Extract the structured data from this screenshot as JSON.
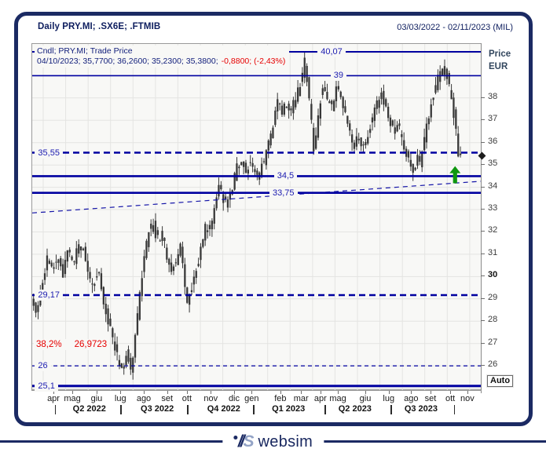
{
  "window": {
    "title": "Daily PRY.MI; .SX6E; .FTMIB",
    "date_range": "03/03/2022 - 02/11/2023 (MIL)"
  },
  "legend": {
    "line1": "Cndl; PRY.MI; Trade Price",
    "line2_values": "04/10/2023; 35,7700; 36,2600; 35,2300; 35,3800;",
    "line2_change": "-0,8800; (-2,43%)"
  },
  "axis": {
    "price_unit_line1": "Price",
    "price_unit_line2": "EUR",
    "auto_button": "Auto",
    "y_ticks": [
      38,
      37,
      36,
      35,
      34,
      33,
      32,
      31,
      30,
      29,
      28,
      27,
      26
    ],
    "y_bold_tick": 30,
    "months": [
      {
        "label": "apr",
        "t": 0.049
      },
      {
        "label": "mag",
        "t": 0.091
      },
      {
        "label": "giu",
        "t": 0.145
      },
      {
        "label": "lug",
        "t": 0.198
      },
      {
        "label": "ago",
        "t": 0.25
      },
      {
        "label": "set",
        "t": 0.302
      },
      {
        "label": "ott",
        "t": 0.346
      },
      {
        "label": "nov",
        "t": 0.399
      },
      {
        "label": "dic",
        "t": 0.451
      },
      {
        "label": "gen",
        "t": 0.49
      },
      {
        "label": "feb",
        "t": 0.554
      },
      {
        "label": "mar",
        "t": 0.6
      },
      {
        "label": "apr",
        "t": 0.643
      },
      {
        "label": "mag",
        "t": 0.682
      },
      {
        "label": "giu",
        "t": 0.743
      },
      {
        "label": "lug",
        "t": 0.795
      },
      {
        "label": "ago",
        "t": 0.845
      },
      {
        "label": "set",
        "t": 0.888
      },
      {
        "label": "ott",
        "t": 0.932
      },
      {
        "label": "nov",
        "t": 0.97
      }
    ],
    "quarters": [
      {
        "label": "Q2 2022",
        "t": 0.129
      },
      {
        "label": "Q3 2022",
        "t": 0.28
      },
      {
        "label": "Q4 2022",
        "t": 0.428
      },
      {
        "label": "Q1 2023",
        "t": 0.572
      },
      {
        "label": "Q2 2023",
        "t": 0.72
      },
      {
        "label": "Q3 2023",
        "t": 0.867
      }
    ],
    "quarter_separators": [
      0.052,
      0.198,
      0.346,
      0.493,
      0.652,
      0.799,
      0.94
    ]
  },
  "chart_data": {
    "type": "candlestick",
    "symbol": "PRY.MI",
    "interval": "Daily",
    "title": "Daily PRY.MI; .SX6E; .FTMIB",
    "ylim": [
      24.88,
      40.42
    ],
    "xrange": [
      "03/03/2022",
      "02/11/2023"
    ],
    "last_trade": {
      "date": "04/10/2023",
      "open": "35,7700",
      "high": "36,2600",
      "low": "35,2300",
      "close": "35,3800",
      "change": "-0,8800",
      "change_pct": "(-2,43%)"
    },
    "close_path": [
      [
        0.003,
        29.0
      ],
      [
        0.014,
        28.3
      ],
      [
        0.026,
        29.6
      ],
      [
        0.038,
        30.8
      ],
      [
        0.049,
        30.2
      ],
      [
        0.061,
        31.0
      ],
      [
        0.073,
        30.1
      ],
      [
        0.084,
        31.3
      ],
      [
        0.096,
        30.4
      ],
      [
        0.105,
        31.2
      ],
      [
        0.117,
        31.4
      ],
      [
        0.128,
        30.2
      ],
      [
        0.14,
        29.5
      ],
      [
        0.152,
        30.3
      ],
      [
        0.163,
        28.9
      ],
      [
        0.175,
        28.0
      ],
      [
        0.185,
        27.2
      ],
      [
        0.196,
        26.3
      ],
      [
        0.206,
        25.8
      ],
      [
        0.215,
        26.6
      ],
      [
        0.224,
        25.9
      ],
      [
        0.233,
        27.0
      ],
      [
        0.241,
        28.6
      ],
      [
        0.252,
        30.6
      ],
      [
        0.262,
        31.8
      ],
      [
        0.273,
        32.4
      ],
      [
        0.283,
        31.6
      ],
      [
        0.294,
        31.9
      ],
      [
        0.304,
        31.0
      ],
      [
        0.315,
        30.2
      ],
      [
        0.325,
        30.7
      ],
      [
        0.334,
        31.5
      ],
      [
        0.343,
        29.9
      ],
      [
        0.35,
        28.7
      ],
      [
        0.358,
        29.4
      ],
      [
        0.369,
        30.3
      ],
      [
        0.379,
        31.1
      ],
      [
        0.388,
        32.2
      ],
      [
        0.399,
        32.0
      ],
      [
        0.409,
        32.9
      ],
      [
        0.42,
        34.3
      ],
      [
        0.43,
        33.5
      ],
      [
        0.441,
        33.3
      ],
      [
        0.449,
        33.9
      ],
      [
        0.46,
        34.9
      ],
      [
        0.469,
        35.3
      ],
      [
        0.479,
        34.7
      ],
      [
        0.49,
        35.2
      ],
      [
        0.5,
        34.6
      ],
      [
        0.509,
        34.5
      ],
      [
        0.517,
        35.0
      ],
      [
        0.526,
        35.5
      ],
      [
        0.535,
        36.3
      ],
      [
        0.544,
        37.2
      ],
      [
        0.552,
        38.0
      ],
      [
        0.561,
        37.4
      ],
      [
        0.57,
        37.9
      ],
      [
        0.579,
        37.2
      ],
      [
        0.587,
        37.8
      ],
      [
        0.596,
        38.3
      ],
      [
        0.605,
        38.9
      ],
      [
        0.612,
        39.7
      ],
      [
        0.619,
        38.2
      ],
      [
        0.626,
        36.9
      ],
      [
        0.631,
        35.5
      ],
      [
        0.638,
        36.6
      ],
      [
        0.645,
        37.8
      ],
      [
        0.652,
        38.6
      ],
      [
        0.661,
        38.1
      ],
      [
        0.67,
        37.5
      ],
      [
        0.678,
        38.2
      ],
      [
        0.687,
        38.5
      ],
      [
        0.696,
        37.7
      ],
      [
        0.705,
        36.9
      ],
      [
        0.713,
        36.3
      ],
      [
        0.722,
        35.9
      ],
      [
        0.731,
        36.4
      ],
      [
        0.74,
        35.8
      ],
      [
        0.748,
        36.1
      ],
      [
        0.757,
        36.8
      ],
      [
        0.766,
        37.4
      ],
      [
        0.774,
        37.9
      ],
      [
        0.783,
        38.2
      ],
      [
        0.792,
        37.6
      ],
      [
        0.801,
        37.0
      ],
      [
        0.809,
        36.5
      ],
      [
        0.818,
        36.9
      ],
      [
        0.827,
        36.2
      ],
      [
        0.836,
        35.6
      ],
      [
        0.844,
        35.0
      ],
      [
        0.853,
        34.7
      ],
      [
        0.862,
        35.4
      ],
      [
        0.869,
        35.0
      ],
      [
        0.876,
        35.9
      ],
      [
        0.883,
        36.7
      ],
      [
        0.89,
        37.5
      ],
      [
        0.897,
        38.1
      ],
      [
        0.904,
        38.6
      ],
      [
        0.911,
        39.0
      ],
      [
        0.918,
        39.4
      ],
      [
        0.925,
        39.1
      ],
      [
        0.932,
        38.6
      ],
      [
        0.939,
        37.9
      ],
      [
        0.946,
        36.8
      ],
      [
        0.953,
        35.4
      ]
    ],
    "levels": [
      {
        "label": "40,07",
        "price": 40.07,
        "style": "solid",
        "width": 2.0,
        "label_t": 0.635
      },
      {
        "label": "39",
        "price": 39.0,
        "style": "solid",
        "width": 1.6,
        "label_t": 0.664
      },
      {
        "label": "35,55",
        "price": 35.55,
        "style": "dashed-bold",
        "width": 2.4,
        "label_t": 0.006
      },
      {
        "label": "34,5",
        "price": 34.5,
        "style": "solid",
        "width": 2.6,
        "label_t": 0.538
      },
      {
        "label": "33,75",
        "price": 33.75,
        "style": "solid",
        "width": 2.6,
        "label_t": 0.528
      },
      {
        "label": "29,17",
        "price": 29.17,
        "style": "dashed-bold",
        "width": 2.4,
        "label_t": 0.006
      },
      {
        "label": "26",
        "price": 26.0,
        "style": "dashed",
        "width": 1.3,
        "label_t": 0.006
      },
      {
        "label": "25,1",
        "price": 25.1,
        "style": "solid",
        "width": 3.0,
        "label_t": 0.006
      }
    ],
    "trendline": {
      "t1": 0.0,
      "price1": 32.85,
      "t2": 1.0,
      "price2": 34.27,
      "style": "dashed"
    },
    "fib_label": {
      "pct": "38,2%",
      "value": "26,9723",
      "price": 26.97
    },
    "arrow_marker": {
      "t": 0.941,
      "tip_price": 34.95,
      "base_price": 34.18,
      "direction": "up"
    },
    "current_price_marker": 35.38
  },
  "footer": {
    "brand": "websim"
  },
  "colors": {
    "frame_navy": "#1b2a63",
    "level_blue": "#0000a0",
    "trend_blue": "#1515a8",
    "label_blue": "#1b1bb0",
    "negative_red": "#e60000",
    "arrow_green": "#0f9710",
    "candle": "#383838",
    "grid": "#e4e4e2"
  }
}
